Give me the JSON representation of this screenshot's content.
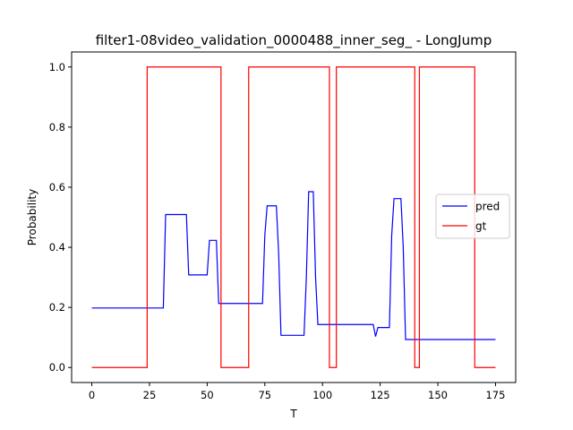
{
  "chart_data": {
    "type": "line",
    "title": "filter1-08video_validation_0000488_inner_seg_ - LongJump",
    "xlabel": "T",
    "ylabel": "Probability",
    "xlim": [
      -8.75,
      183.75
    ],
    "ylim": [
      -0.05,
      1.05
    ],
    "xticks": [
      0,
      25,
      50,
      75,
      100,
      125,
      150,
      175
    ],
    "yticks": [
      0.0,
      0.2,
      0.4,
      0.6,
      0.8,
      1.0
    ],
    "grid": false,
    "legend": {
      "position": "center-right",
      "entries": [
        "pred",
        "gt"
      ]
    },
    "series": [
      {
        "name": "pred",
        "color": "#0000ff",
        "x": [
          0,
          31,
          32,
          41,
          42,
          50,
          51,
          54,
          55,
          74,
          75,
          76,
          80,
          81,
          82,
          92,
          93,
          94,
          96,
          97,
          98,
          99,
          122,
          123,
          124,
          129,
          130,
          131,
          134,
          135,
          136,
          175
        ],
        "y": [
          0.198,
          0.198,
          0.509,
          0.509,
          0.308,
          0.308,
          0.423,
          0.423,
          0.213,
          0.213,
          0.44,
          0.538,
          0.538,
          0.38,
          0.107,
          0.107,
          0.3,
          0.585,
          0.585,
          0.3,
          0.143,
          0.143,
          0.143,
          0.103,
          0.133,
          0.133,
          0.44,
          0.562,
          0.562,
          0.4,
          0.093,
          0.093
        ]
      },
      {
        "name": "gt",
        "color": "#ff0000",
        "x": [
          0,
          24,
          24,
          56,
          56,
          68,
          68,
          103,
          103,
          106,
          106,
          140,
          140,
          142,
          142,
          166,
          166,
          175
        ],
        "y": [
          0,
          0,
          1,
          1,
          0,
          0,
          1,
          1,
          0,
          0,
          1,
          1,
          0,
          0,
          1,
          1,
          0,
          0
        ]
      }
    ]
  }
}
